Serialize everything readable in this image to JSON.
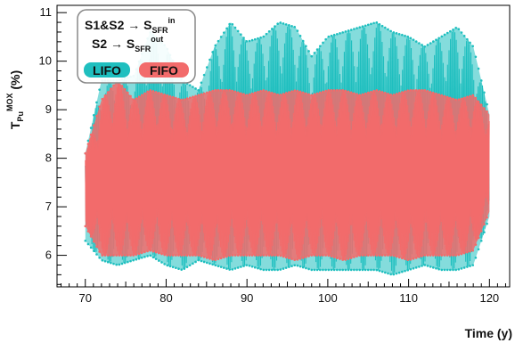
{
  "chart_data": {
    "type": "line",
    "title": "",
    "xlabel": "Time (y)",
    "ylabel": {
      "main": "T",
      "sub": "Pu",
      "sup": "MOX",
      "unit": " (%)"
    },
    "xlim": [
      66.5,
      122.5
    ],
    "ylim": [
      5.35,
      11.15
    ],
    "x_ticks": [
      70,
      80,
      90,
      100,
      110,
      120
    ],
    "y_ticks": [
      6,
      7,
      8,
      9,
      10,
      11
    ],
    "grid": false,
    "legend_placement": "top-left",
    "annotation": {
      "line1": {
        "text": "S1&S2 → S",
        "sub": "SFR",
        "sup": "in"
      },
      "line2": {
        "text": "S2 → S",
        "sub": "SFR",
        "sup": "out"
      }
    },
    "series": [
      {
        "name": "LIFO",
        "color": "#1fbfbf",
        "band": {
          "x": [
            70,
            72,
            74,
            76,
            78,
            80,
            82,
            84,
            86,
            88,
            90,
            92,
            94,
            96,
            98,
            100,
            102,
            104,
            106,
            108,
            110,
            112,
            114,
            116,
            118,
            120
          ],
          "upper": [
            8.1,
            9.6,
            9.6,
            9.7,
            10.6,
            10.3,
            9.6,
            9.4,
            10.3,
            10.8,
            10.4,
            10.5,
            10.8,
            10.7,
            10.1,
            10.5,
            10.6,
            10.7,
            10.8,
            10.6,
            10.5,
            10.3,
            10.5,
            10.7,
            10.3,
            8.9
          ],
          "lower": [
            6.3,
            5.9,
            5.8,
            5.9,
            6.0,
            5.8,
            5.7,
            5.9,
            5.8,
            5.7,
            5.8,
            5.7,
            5.7,
            5.8,
            5.7,
            5.7,
            5.7,
            5.7,
            5.7,
            5.6,
            5.7,
            5.8,
            5.7,
            5.7,
            5.8,
            6.8
          ]
        }
      },
      {
        "name": "FIFO",
        "color": "#f26b6b",
        "band": {
          "x": [
            70,
            72,
            74,
            76,
            78,
            80,
            82,
            84,
            86,
            88,
            90,
            92,
            94,
            96,
            98,
            100,
            102,
            104,
            106,
            108,
            110,
            112,
            114,
            116,
            118,
            120
          ],
          "upper": [
            8.1,
            9.2,
            9.6,
            9.2,
            9.4,
            9.3,
            9.2,
            9.3,
            9.4,
            9.4,
            9.3,
            9.4,
            9.3,
            9.4,
            9.3,
            9.4,
            9.4,
            9.3,
            9.4,
            9.3,
            9.4,
            9.4,
            9.3,
            9.2,
            9.3,
            8.9
          ],
          "lower": [
            6.6,
            6.0,
            6.0,
            6.0,
            6.1,
            6.0,
            6.0,
            6.0,
            5.9,
            6.0,
            6.0,
            6.0,
            6.0,
            5.9,
            6.0,
            6.0,
            5.9,
            6.0,
            6.0,
            6.0,
            5.9,
            6.0,
            6.0,
            6.0,
            6.1,
            6.9
          ]
        }
      }
    ]
  }
}
